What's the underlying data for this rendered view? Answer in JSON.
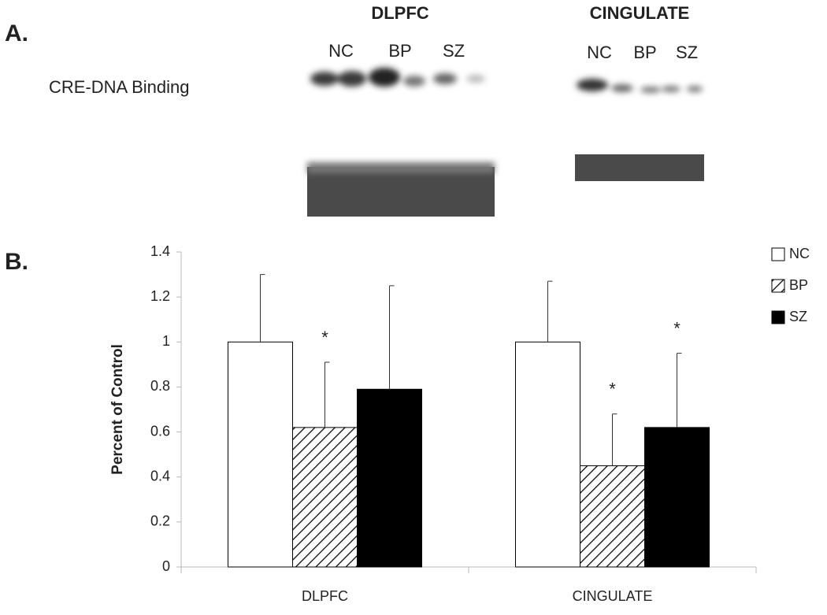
{
  "panel_a": {
    "label": "A.",
    "row_label": "CRE-DNA Binding",
    "gels": [
      {
        "title": "DLPFC",
        "lanes": [
          "NC",
          "BP",
          "SZ"
        ]
      },
      {
        "title": "CINGULATE",
        "lanes": [
          "NC",
          "BP",
          "SZ"
        ]
      }
    ]
  },
  "panel_b_label": "B.",
  "chart_data": {
    "type": "bar",
    "ylabel": "Percent of Control",
    "categories": [
      "DLPFC",
      "CINGULATE"
    ],
    "series": [
      {
        "name": "NC",
        "color": "#ffffff",
        "values": [
          1.0,
          1.0
        ],
        "errors": [
          0.3,
          0.27
        ],
        "labels": [
          null,
          null
        ]
      },
      {
        "name": "BP",
        "color": "#ffffff",
        "hatch": true,
        "values": [
          0.62,
          0.45
        ],
        "errors": [
          0.29,
          0.23
        ],
        "labels": [
          "*",
          "*"
        ]
      },
      {
        "name": "SZ",
        "color": "#000000",
        "values": [
          0.79,
          0.62
        ],
        "errors": [
          0.46,
          0.33
        ],
        "labels": [
          null,
          "*"
        ]
      }
    ],
    "ylim": [
      0,
      1.4
    ],
    "yticks": [
      0,
      0.2,
      0.4,
      0.6,
      0.8,
      1,
      1.2,
      1.4
    ],
    "grid": false,
    "legend": "top-right"
  }
}
